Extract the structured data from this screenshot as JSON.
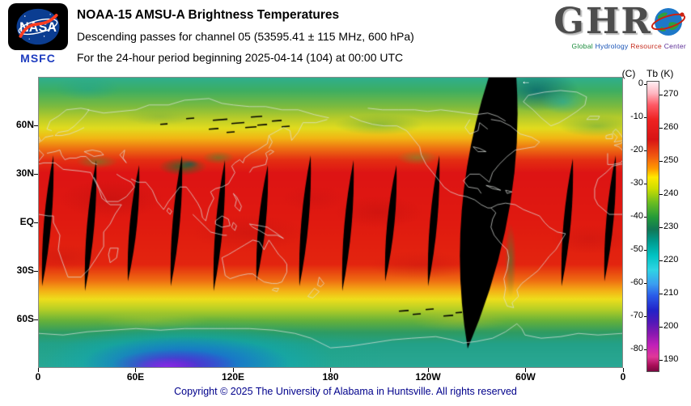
{
  "nasa": {
    "wordmark": "NASA",
    "center": "MSFC"
  },
  "header": {
    "title": "NOAA-15 AMSU-A Brightness Temperatures",
    "line2": "Descending passes for channel 05 (53595.41 ± 115 MHz, 600 hPa)",
    "line3": "For the 24-hour period beginning 2025-04-14 (104) at 00:00 UTC"
  },
  "ghrc": {
    "wordmark": "GHR",
    "tagline": [
      {
        "text": "Global ",
        "color": "#168a38"
      },
      {
        "text": "Hydrology ",
        "color": "#1450b4"
      },
      {
        "text": "Resource ",
        "color": "#c42a1c"
      },
      {
        "text": "Center",
        "color": "#5c2e96"
      }
    ]
  },
  "map": {
    "pass_direction_arrow": "←",
    "y_ticks": [
      {
        "label": "60N",
        "lat": 60
      },
      {
        "label": "30N",
        "lat": 30
      },
      {
        "label": "EQ",
        "lat": 0
      },
      {
        "label": "30S",
        "lat": -30
      },
      {
        "label": "60S",
        "lat": -60
      }
    ],
    "x_ticks": [
      {
        "label": "0",
        "lon": 0
      },
      {
        "label": "60E",
        "lon": 60
      },
      {
        "label": "120E",
        "lon": 120
      },
      {
        "label": "180",
        "lon": 180
      },
      {
        "label": "120W",
        "lon": 240
      },
      {
        "label": "60W",
        "lon": 300
      },
      {
        "label": "0",
        "lon": 360
      }
    ],
    "bands": [
      [
        0.0,
        "#2fae8e"
      ],
      [
        0.045,
        "#3dae62"
      ],
      [
        0.1,
        "#7dbb3e"
      ],
      [
        0.14,
        "#b8cc2a"
      ],
      [
        0.175,
        "#e2dc1e"
      ],
      [
        0.21,
        "#f2b414"
      ],
      [
        0.245,
        "#ee7012"
      ],
      [
        0.285,
        "#e42e12"
      ],
      [
        0.33,
        "#dd1414"
      ],
      [
        0.5,
        "#e01a10"
      ],
      [
        0.645,
        "#e3250f"
      ],
      [
        0.7,
        "#ef6c12"
      ],
      [
        0.735,
        "#f4ae16"
      ],
      [
        0.765,
        "#eede1c"
      ],
      [
        0.8,
        "#b6cf26"
      ],
      [
        0.84,
        "#66b13a"
      ],
      [
        0.88,
        "#2f9b62"
      ],
      [
        0.92,
        "#23a188"
      ],
      [
        1.0,
        "#2aa895"
      ]
    ]
  },
  "colorbar": {
    "unit_c": "(C)",
    "unit_k": "Tb (K)",
    "k_ticks": [
      "270",
      "260",
      "250",
      "240",
      "230",
      "220",
      "210",
      "200",
      "190"
    ],
    "c_ticks": [
      "0",
      "-10",
      "-20",
      "-30",
      "-40",
      "-50",
      "-60",
      "-70",
      "-80"
    ],
    "gradient": [
      [
        0.0,
        "#ffeef2"
      ],
      [
        0.04,
        "#ffb6c1"
      ],
      [
        0.08,
        "#ff5a66"
      ],
      [
        0.13,
        "#ee2222"
      ],
      [
        0.2,
        "#d81414"
      ],
      [
        0.26,
        "#f25c10"
      ],
      [
        0.3,
        "#ff9900"
      ],
      [
        0.33,
        "#ffe800"
      ],
      [
        0.37,
        "#ccdd00"
      ],
      [
        0.42,
        "#66bb22"
      ],
      [
        0.47,
        "#22993a"
      ],
      [
        0.51,
        "#117755"
      ],
      [
        0.55,
        "#00998c"
      ],
      [
        0.6,
        "#00c2c2"
      ],
      [
        0.65,
        "#2fd4e4"
      ],
      [
        0.7,
        "#3a9cf0"
      ],
      [
        0.74,
        "#2a5ae8"
      ],
      [
        0.79,
        "#2222c8"
      ],
      [
        0.83,
        "#5018b8"
      ],
      [
        0.87,
        "#8818b0"
      ],
      [
        0.91,
        "#c020b8"
      ],
      [
        0.95,
        "#e03898"
      ],
      [
        0.98,
        "#a80f58"
      ],
      [
        1.0,
        "#7a0840"
      ]
    ]
  },
  "footer": {
    "copyright": "Copyright © 2025 The University of Alabama in Huntsville. All rights reserved"
  }
}
